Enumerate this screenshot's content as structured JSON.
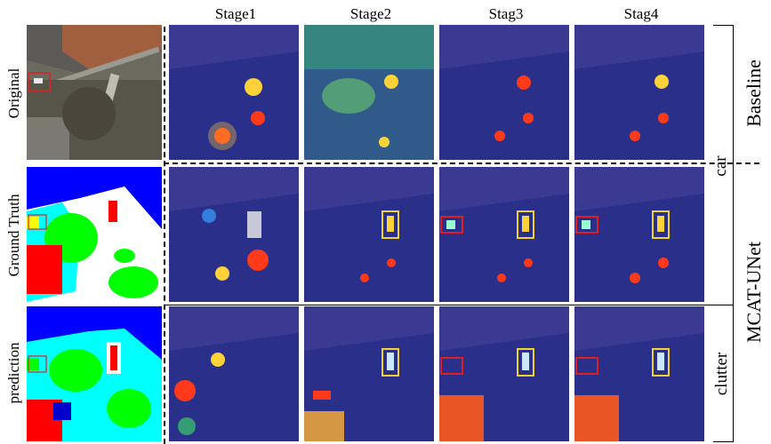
{
  "stages": [
    "Stage1",
    "Stage2",
    "Stag3",
    "Stag4"
  ],
  "rows": [
    "Original",
    "Ground Truth",
    "prediction"
  ],
  "right_labels": {
    "baseline": "Baseline",
    "mcat": "MCAT-UNet",
    "car": "car",
    "clutter": "clutter"
  },
  "colors": {
    "heatmap_bg": "#2a2f8a",
    "highlight_box": "#f2d22e",
    "car_box": "#e02020",
    "gt_blue": "#0000ff",
    "gt_cyan": "#00ffff",
    "gt_green": "#00ff00",
    "gt_red": "#ff0000",
    "gt_yellow": "#ffff00",
    "gt_white": "#ffffff"
  }
}
